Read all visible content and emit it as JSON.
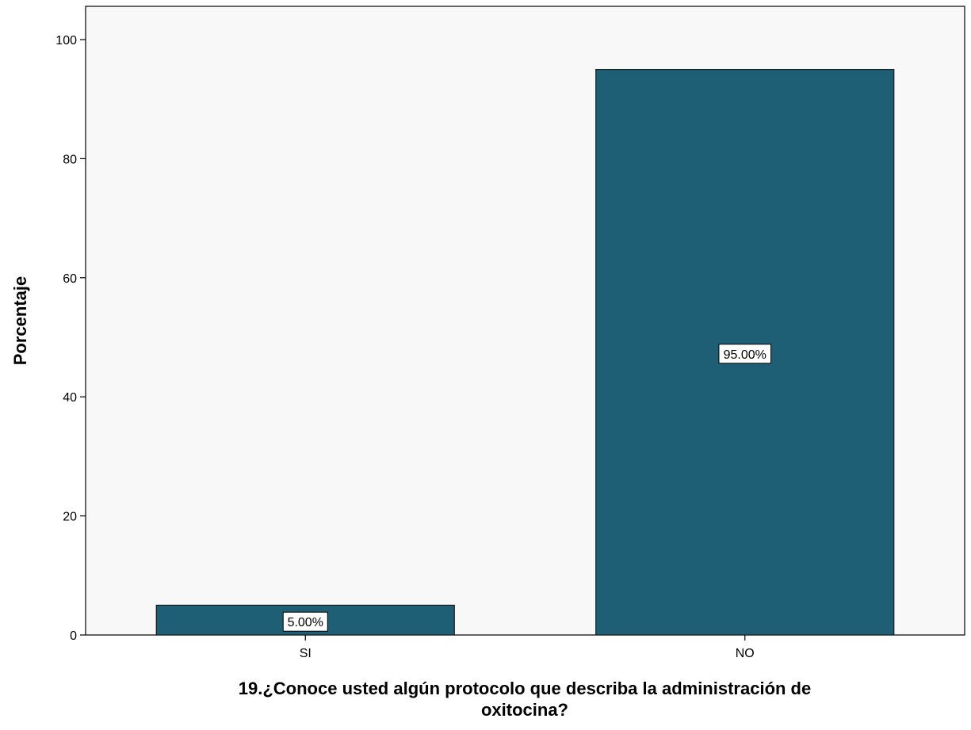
{
  "chart_data": {
    "type": "bar",
    "categories": [
      "SI",
      "NO"
    ],
    "values": [
      5,
      95
    ],
    "data_labels": [
      "5.00%",
      "95.00%"
    ],
    "yticks": [
      0,
      20,
      40,
      60,
      80,
      100
    ],
    "ylim": [
      0,
      105
    ],
    "ylabel": "Porcentaje",
    "xlabel_lines": [
      "19.¿Conoce usted algún protocolo que describa la administración de",
      "oxitocina?"
    ],
    "bar_color": "#1f5f75",
    "grid": false
  }
}
